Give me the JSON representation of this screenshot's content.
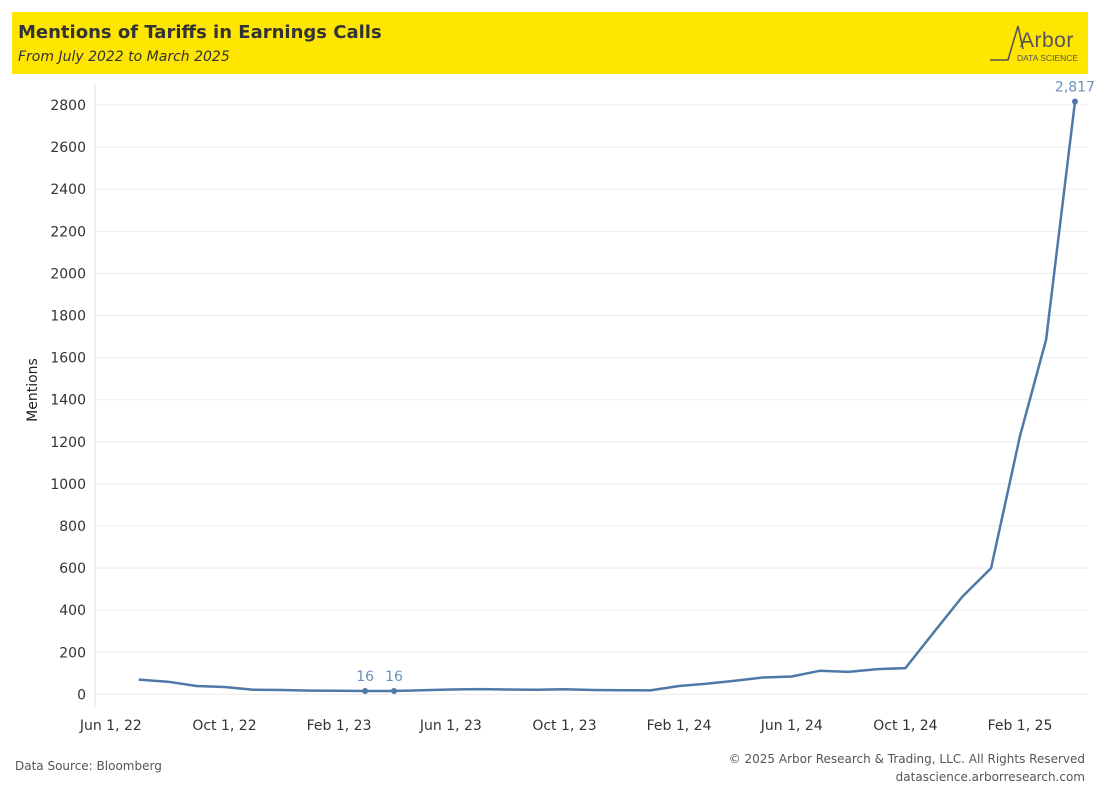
{
  "header": {
    "title": "Mentions of Tariffs in Earnings Calls",
    "subtitle": "From July 2022 to March 2025",
    "logo_word": "Arbor",
    "logo_sub": "DATA SCIENCE"
  },
  "footer": {
    "source": "Data Source: Bloomberg",
    "copyright": "© 2025 Arbor Research & Trading, LLC. All Rights Reserved",
    "website": "datascience.arborresearch.com"
  },
  "colors": {
    "banner": "#ffe600",
    "line": "#4e79a7",
    "annotation": "#6a8fbf",
    "grid": "#ececec",
    "axis_text": "#333333"
  },
  "chart_data": {
    "type": "line",
    "title": "Mentions of Tariffs in Earnings Calls",
    "subtitle": "From July 2022 to March 2025",
    "xlabel": "",
    "ylabel": "Mentions",
    "grid": true,
    "x_ticks": [
      {
        "date": "2022-06-01",
        "label": "Jun 1, 22"
      },
      {
        "date": "2022-10-01",
        "label": "Oct 1, 22"
      },
      {
        "date": "2023-02-01",
        "label": "Feb 1, 23"
      },
      {
        "date": "2023-06-01",
        "label": "Jun 1, 23"
      },
      {
        "date": "2023-10-01",
        "label": "Oct 1, 23"
      },
      {
        "date": "2024-02-01",
        "label": "Feb 1, 24"
      },
      {
        "date": "2024-06-01",
        "label": "Jun 1, 24"
      },
      {
        "date": "2024-10-01",
        "label": "Oct 1, 24"
      },
      {
        "date": "2025-02-01",
        "label": "Feb 1, 25"
      }
    ],
    "x_range": [
      "2022-05-15",
      "2025-04-15"
    ],
    "y_ticks": [
      0,
      200,
      400,
      600,
      800,
      1000,
      1200,
      1400,
      1600,
      1800,
      2000,
      2200,
      2400,
      2600,
      2800
    ],
    "ylim": [
      -60,
      2900
    ],
    "series": [
      {
        "points": [
          {
            "x": "2022-07-01",
            "y": 70
          },
          {
            "x": "2022-08-01",
            "y": 60
          },
          {
            "x": "2022-09-01",
            "y": 40
          },
          {
            "x": "2022-10-01",
            "y": 35
          },
          {
            "x": "2022-11-01",
            "y": 22
          },
          {
            "x": "2022-12-01",
            "y": 21
          },
          {
            "x": "2023-01-01",
            "y": 18
          },
          {
            "x": "2023-02-01",
            "y": 17
          },
          {
            "x": "2023-03-01",
            "y": 16
          },
          {
            "x": "2023-04-01",
            "y": 16
          },
          {
            "x": "2023-05-01",
            "y": 20
          },
          {
            "x": "2023-06-01",
            "y": 23
          },
          {
            "x": "2023-07-01",
            "y": 25
          },
          {
            "x": "2023-08-01",
            "y": 23
          },
          {
            "x": "2023-09-01",
            "y": 22
          },
          {
            "x": "2023-10-01",
            "y": 24
          },
          {
            "x": "2023-11-01",
            "y": 21
          },
          {
            "x": "2023-12-01",
            "y": 20
          },
          {
            "x": "2024-01-01",
            "y": 19
          },
          {
            "x": "2024-02-01",
            "y": 40
          },
          {
            "x": "2024-03-01",
            "y": 50
          },
          {
            "x": "2024-04-01",
            "y": 65
          },
          {
            "x": "2024-05-01",
            "y": 80
          },
          {
            "x": "2024-06-01",
            "y": 85
          },
          {
            "x": "2024-07-01",
            "y": 112
          },
          {
            "x": "2024-08-01",
            "y": 107
          },
          {
            "x": "2024-09-01",
            "y": 120
          },
          {
            "x": "2024-10-01",
            "y": 125
          },
          {
            "x": "2024-11-01",
            "y": 298
          },
          {
            "x": "2024-12-01",
            "y": 463
          },
          {
            "x": "2025-01-01",
            "y": 600
          },
          {
            "x": "2025-02-01",
            "y": 1228
          },
          {
            "x": "2025-03-01",
            "y": 1685
          },
          {
            "x": "2025-04-01",
            "y": 2817
          }
        ]
      }
    ],
    "annotations": [
      {
        "x": "2023-03-01",
        "y": 16,
        "label": "16"
      },
      {
        "x": "2023-04-01",
        "y": 16,
        "label": "16"
      },
      {
        "x": "2025-04-01",
        "y": 2817,
        "label": "2,817"
      }
    ]
  }
}
